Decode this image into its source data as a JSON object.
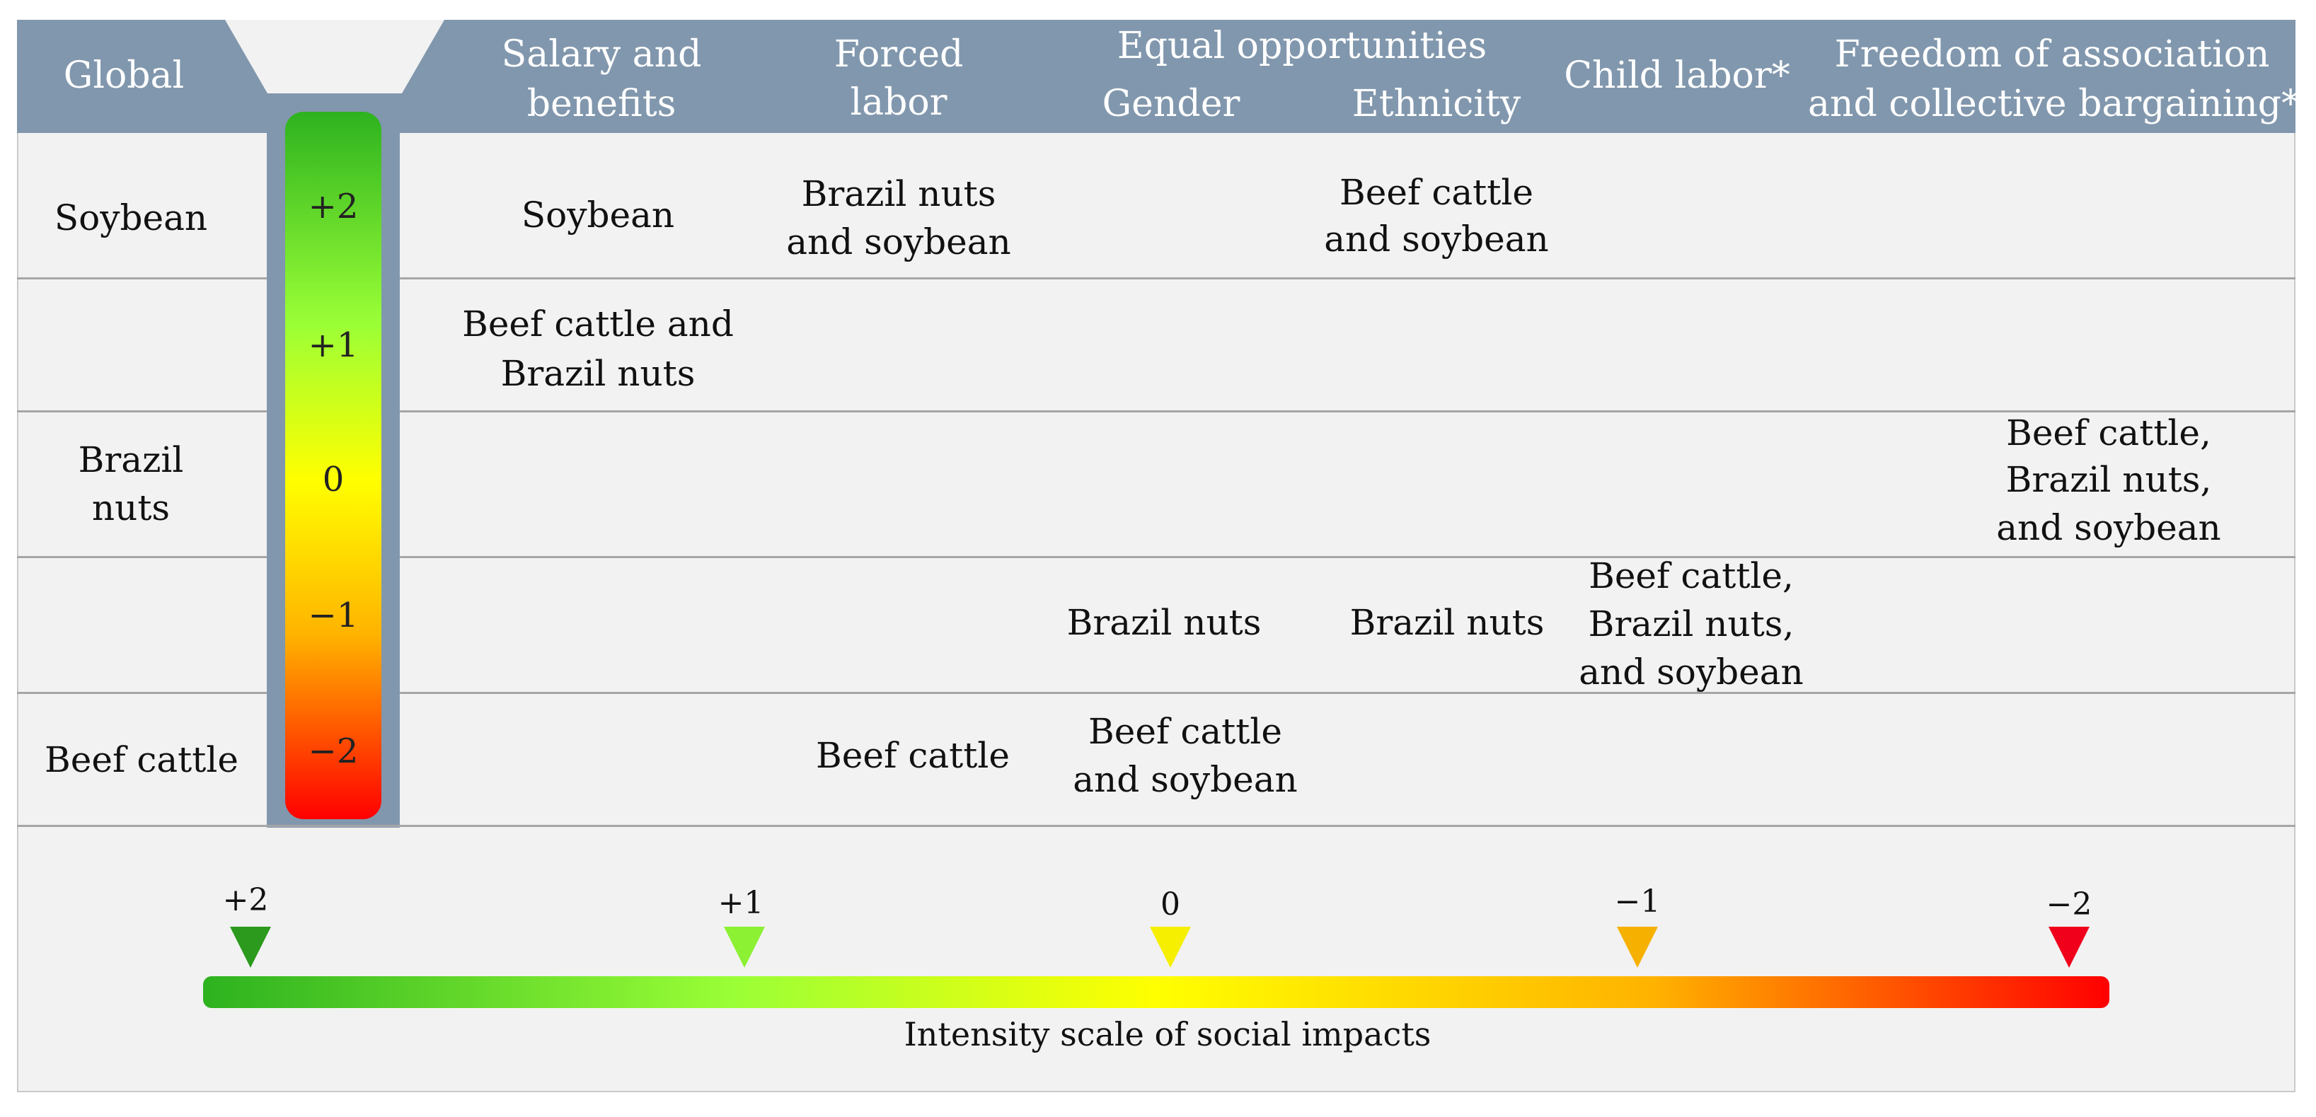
{
  "header": {
    "global": "Global",
    "salary": [
      "Salary and",
      "benefits"
    ],
    "forced": [
      "Forced",
      "labor"
    ],
    "equal": "Equal opportunities",
    "gender": "Gender",
    "ethnicity": "Ethnicity",
    "child": "Child labor*",
    "freedom": [
      "Freedom of association",
      "and collective bargaining*"
    ]
  },
  "scale_levels": [
    "+2",
    "+1",
    "0",
    "−1",
    "−2"
  ],
  "global_column": {
    "soybean": "Soybean",
    "brazil": [
      "Brazil",
      "nuts"
    ],
    "beef": "Beef cattle"
  },
  "cells": {
    "salary_plus2": "Soybean",
    "forced_plus2": [
      "Brazil nuts",
      "and soybean"
    ],
    "ethnicity_plus2": [
      "Beef cattle",
      "and soybean"
    ],
    "salary_plus1": [
      "Beef cattle and",
      "Brazil nuts"
    ],
    "freedom_zero": [
      "Beef cattle,",
      "Brazil nuts,",
      "and soybean"
    ],
    "gender_minus1": "Brazil nuts",
    "ethnicity_minus1": "Brazil nuts",
    "child_minus1": [
      "Beef cattle,",
      "Brazil nuts,",
      "and soybean"
    ],
    "forced_minus2": "Beef cattle",
    "gender_minus2": [
      "Beef cattle",
      "and soybean"
    ]
  },
  "intensity_scale": {
    "labels": [
      "+2",
      "+1",
      "0",
      "−1",
      "−2"
    ],
    "caption": "Intensity scale of social impacts"
  },
  "colors": {
    "header": "#8197ad",
    "green": "#2db21f",
    "light_green": "#9bff36",
    "yellow": "#ffff00",
    "orange": "#ffb300",
    "red": "#ff0000"
  }
}
